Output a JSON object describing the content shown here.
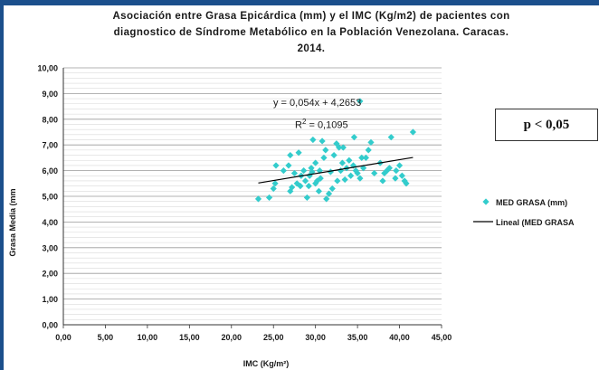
{
  "chart_data": {
    "type": "scatter",
    "title_lines": [
      "Asociación entre Grasa Epicárdica (mm) y el IMC (Kg/m2)  de pacientes con",
      "diagnostico de Síndrome Metabólico en la Población Venezolana. Caracas.",
      "2014."
    ],
    "xlabel": "IMC (Kg/m²)",
    "ylabel": "Grasa Media (mm",
    "xlim": [
      0,
      45
    ],
    "ylim": [
      0,
      10
    ],
    "x_ticks": [
      "0,00",
      "5,00",
      "10,00",
      "15,00",
      "20,00",
      "25,00",
      "30,00",
      "35,00",
      "40,00",
      "45,00"
    ],
    "y_ticks": [
      "0,00",
      "1,00",
      "2,00",
      "3,00",
      "4,00",
      "5,00",
      "6,00",
      "7,00",
      "8,00",
      "9,00",
      "10,00"
    ],
    "grid": true,
    "legend_position": "right",
    "equation": "y = 0,054x + 4,2653",
    "r_squared_label": "R",
    "r_squared_sup": "2",
    "r_squared_value": " = 0,1095",
    "p_value": "p < 0,05",
    "series": [
      {
        "name": "MED GRASA (mm)",
        "marker": "diamond",
        "color": "#33cccc",
        "points": [
          [
            23.2,
            4.9
          ],
          [
            24.5,
            4.95
          ],
          [
            25.0,
            5.3
          ],
          [
            25.2,
            5.5
          ],
          [
            25.3,
            6.2
          ],
          [
            26.2,
            6.0
          ],
          [
            26.8,
            6.2
          ],
          [
            27.0,
            6.6
          ],
          [
            27.0,
            5.2
          ],
          [
            27.2,
            5.35
          ],
          [
            27.5,
            5.9
          ],
          [
            27.8,
            5.5
          ],
          [
            28.0,
            6.7
          ],
          [
            28.2,
            5.4
          ],
          [
            28.3,
            5.8
          ],
          [
            28.6,
            6.0
          ],
          [
            28.8,
            5.6
          ],
          [
            29.0,
            4.95
          ],
          [
            29.2,
            5.4
          ],
          [
            29.3,
            5.8
          ],
          [
            29.5,
            6.1
          ],
          [
            29.6,
            5.95
          ],
          [
            29.7,
            7.2
          ],
          [
            30.0,
            6.3
          ],
          [
            30.0,
            5.5
          ],
          [
            30.2,
            5.6
          ],
          [
            30.4,
            5.2
          ],
          [
            30.5,
            6.0
          ],
          [
            30.6,
            5.7
          ],
          [
            30.8,
            7.15
          ],
          [
            31.0,
            6.5
          ],
          [
            31.2,
            6.8
          ],
          [
            31.3,
            4.9
          ],
          [
            31.6,
            5.1
          ],
          [
            31.8,
            5.95
          ],
          [
            32.0,
            5.3
          ],
          [
            32.2,
            6.6
          ],
          [
            32.5,
            7.05
          ],
          [
            32.6,
            5.6
          ],
          [
            32.8,
            6.9
          ],
          [
            33.0,
            6.0
          ],
          [
            33.2,
            6.3
          ],
          [
            33.3,
            6.9
          ],
          [
            33.5,
            5.65
          ],
          [
            33.7,
            6.1
          ],
          [
            34.0,
            6.4
          ],
          [
            34.2,
            5.8
          ],
          [
            34.5,
            6.2
          ],
          [
            34.6,
            7.3
          ],
          [
            34.8,
            6.0
          ],
          [
            35.0,
            5.9
          ],
          [
            35.3,
            5.7
          ],
          [
            35.5,
            6.5
          ],
          [
            35.7,
            6.1
          ],
          [
            36.0,
            6.5
          ],
          [
            36.3,
            6.8
          ],
          [
            36.6,
            7.1
          ],
          [
            37.7,
            6.3
          ],
          [
            38.0,
            5.6
          ],
          [
            38.2,
            5.9
          ],
          [
            38.5,
            6.0
          ],
          [
            38.8,
            6.1
          ],
          [
            39.0,
            7.3
          ],
          [
            39.5,
            5.7
          ],
          [
            39.6,
            6.0
          ],
          [
            40.0,
            6.2
          ],
          [
            40.3,
            5.8
          ],
          [
            40.6,
            5.6
          ],
          [
            40.8,
            5.5
          ],
          [
            41.6,
            7.5
          ],
          [
            35.3,
            8.7
          ],
          [
            37.0,
            5.9
          ]
        ]
      },
      {
        "name": "Lineal (MED GRASA (mm))",
        "legend_label": "Lineal (MED GRASA",
        "type": "line",
        "color": "#000000",
        "x_range": [
          23.2,
          41.6
        ],
        "slope": 0.054,
        "intercept": 4.2653
      }
    ]
  }
}
